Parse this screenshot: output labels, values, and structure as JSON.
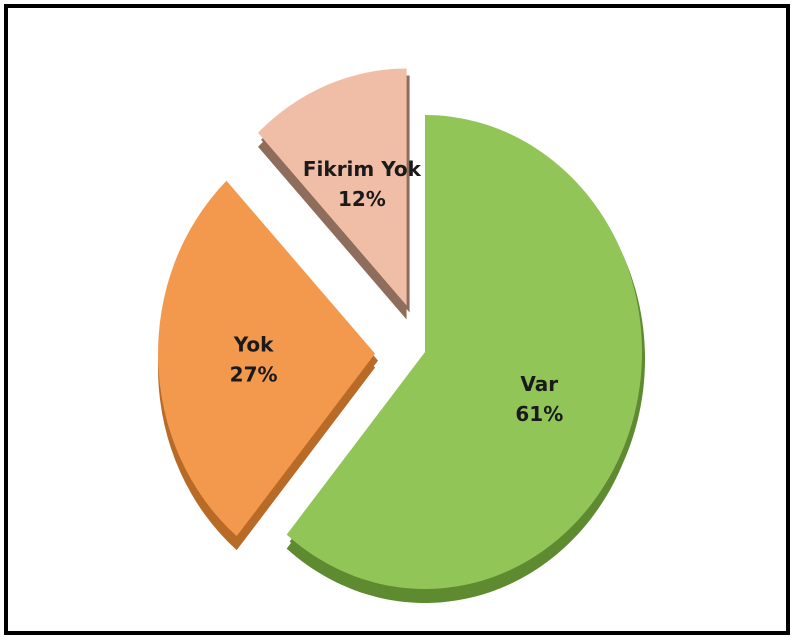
{
  "chart_data": {
    "type": "pie",
    "style": "3d-exploded",
    "categories": [
      "Var",
      "Yok",
      "Fikrim Yok"
    ],
    "values": [
      61,
      27,
      12
    ],
    "value_labels": [
      "61%",
      "27%",
      "12%"
    ],
    "colors": [
      "#92c558",
      "#f2994e",
      "#f0bea6"
    ],
    "side_colors": [
      "#5e8a30",
      "#b86a27",
      "#8f6d5d"
    ],
    "exploded": [
      false,
      true,
      true
    ],
    "title": "",
    "legend": false
  }
}
